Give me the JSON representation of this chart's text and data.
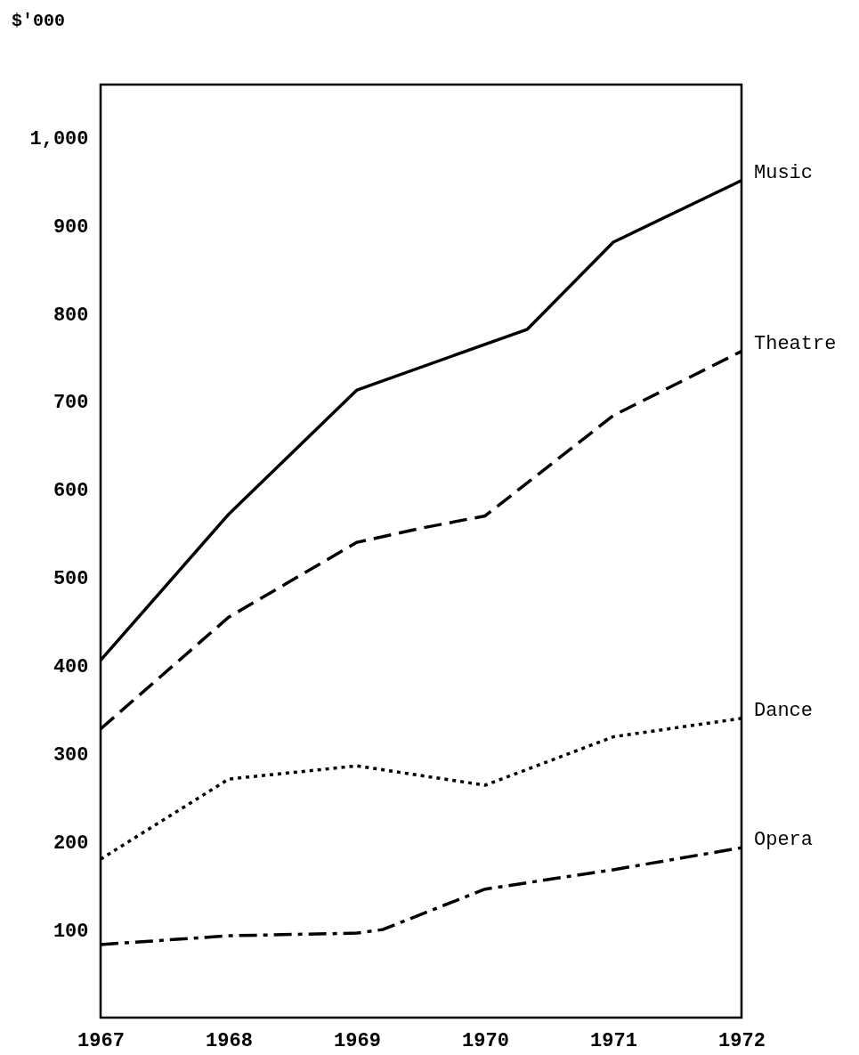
{
  "chart_data": {
    "type": "line",
    "ylabel": "$'000",
    "xlim": [
      1967,
      1972
    ],
    "xticks": [
      1967,
      1968,
      1969,
      1970,
      1971,
      1972
    ],
    "ylim": [
      0,
      1060
    ],
    "yticks": [
      100,
      200,
      300,
      400,
      500,
      600,
      700,
      800,
      900,
      {
        "value": 1000,
        "label": "1,000"
      }
    ],
    "grid": false,
    "marker": "none",
    "series": [
      {
        "name": "Music",
        "color": "#000000",
        "line_style": "solid",
        "x": [
          1967,
          1968,
          1969,
          1970.33,
          1971,
          1972
        ],
        "values": [
          406,
          572,
          713,
          782,
          881,
          951
        ]
      },
      {
        "name": "Theatre",
        "color": "#000000",
        "line_style": "dashed",
        "x": [
          1967,
          1968,
          1969,
          1969.5,
          1970,
          1971,
          1972
        ],
        "values": [
          328,
          455,
          540,
          556,
          570,
          684,
          757
        ]
      },
      {
        "name": "Dance",
        "color": "#000000",
        "line_style": "dotted",
        "x": [
          1967,
          1968,
          1969,
          1970,
          1971,
          1972
        ],
        "values": [
          180,
          271,
          286,
          264,
          319,
          340
        ]
      },
      {
        "name": "Opera",
        "color": "#000000",
        "line_style": "dashdot",
        "x": [
          1967,
          1968,
          1969,
          1969.2,
          1970,
          1971,
          1972
        ],
        "values": [
          83,
          93,
          96,
          100,
          146,
          168,
          193
        ]
      }
    ]
  }
}
